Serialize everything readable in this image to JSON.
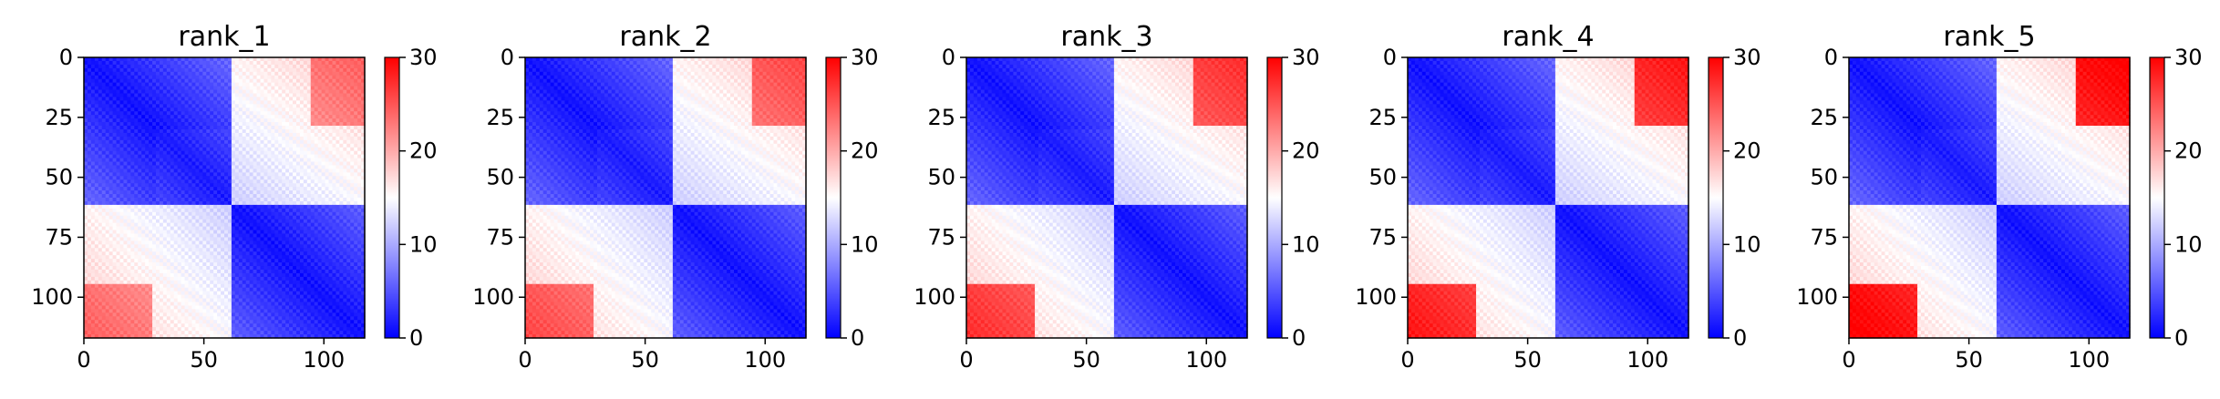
{
  "chart_data": [
    {
      "type": "heatmap",
      "title": "rank_1",
      "matrix_size": 117,
      "block_split": 62,
      "xticks": [
        0,
        50,
        100
      ],
      "yticks": [
        0,
        25,
        50,
        75,
        100
      ],
      "xlim": [
        0,
        117
      ],
      "ylim": [
        117,
        0
      ],
      "colorbar": {
        "ticks": [
          0,
          10,
          20,
          30
        ],
        "range": [
          0,
          30
        ],
        "colors": [
          "#0000ff",
          "#ffffff",
          "#ff0000"
        ]
      }
    },
    {
      "type": "heatmap",
      "title": "rank_2",
      "matrix_size": 117,
      "block_split": 62,
      "xticks": [
        0,
        50,
        100
      ],
      "yticks": [
        0,
        25,
        50,
        75,
        100
      ],
      "xlim": [
        0,
        117
      ],
      "ylim": [
        117,
        0
      ],
      "colorbar": {
        "ticks": [
          0,
          10,
          20,
          30
        ],
        "range": [
          0,
          30
        ],
        "colors": [
          "#0000ff",
          "#ffffff",
          "#ff0000"
        ]
      }
    },
    {
      "type": "heatmap",
      "title": "rank_3",
      "matrix_size": 117,
      "block_split": 62,
      "xticks": [
        0,
        50,
        100
      ],
      "yticks": [
        0,
        25,
        50,
        75,
        100
      ],
      "xlim": [
        0,
        117
      ],
      "ylim": [
        117,
        0
      ],
      "colorbar": {
        "ticks": [
          0,
          10,
          20,
          30
        ],
        "range": [
          0,
          30
        ],
        "colors": [
          "#0000ff",
          "#ffffff",
          "#ff0000"
        ]
      }
    },
    {
      "type": "heatmap",
      "title": "rank_4",
      "matrix_size": 117,
      "block_split": 62,
      "xticks": [
        0,
        50,
        100
      ],
      "yticks": [
        0,
        25,
        50,
        75,
        100
      ],
      "xlim": [
        0,
        117
      ],
      "ylim": [
        117,
        0
      ],
      "colorbar": {
        "ticks": [
          0,
          10,
          20,
          30
        ],
        "range": [
          0,
          30
        ],
        "colors": [
          "#0000ff",
          "#ffffff",
          "#ff0000"
        ]
      }
    },
    {
      "type": "heatmap",
      "title": "rank_5",
      "matrix_size": 117,
      "block_split": 62,
      "xticks": [
        0,
        50,
        100
      ],
      "yticks": [
        0,
        25,
        50,
        75,
        100
      ],
      "xlim": [
        0,
        117
      ],
      "ylim": [
        117,
        0
      ],
      "colorbar": {
        "ticks": [
          0,
          10,
          20,
          30
        ],
        "range": [
          0,
          30
        ],
        "colors": [
          "#0000ff",
          "#ffffff",
          "#ff0000"
        ]
      }
    }
  ]
}
